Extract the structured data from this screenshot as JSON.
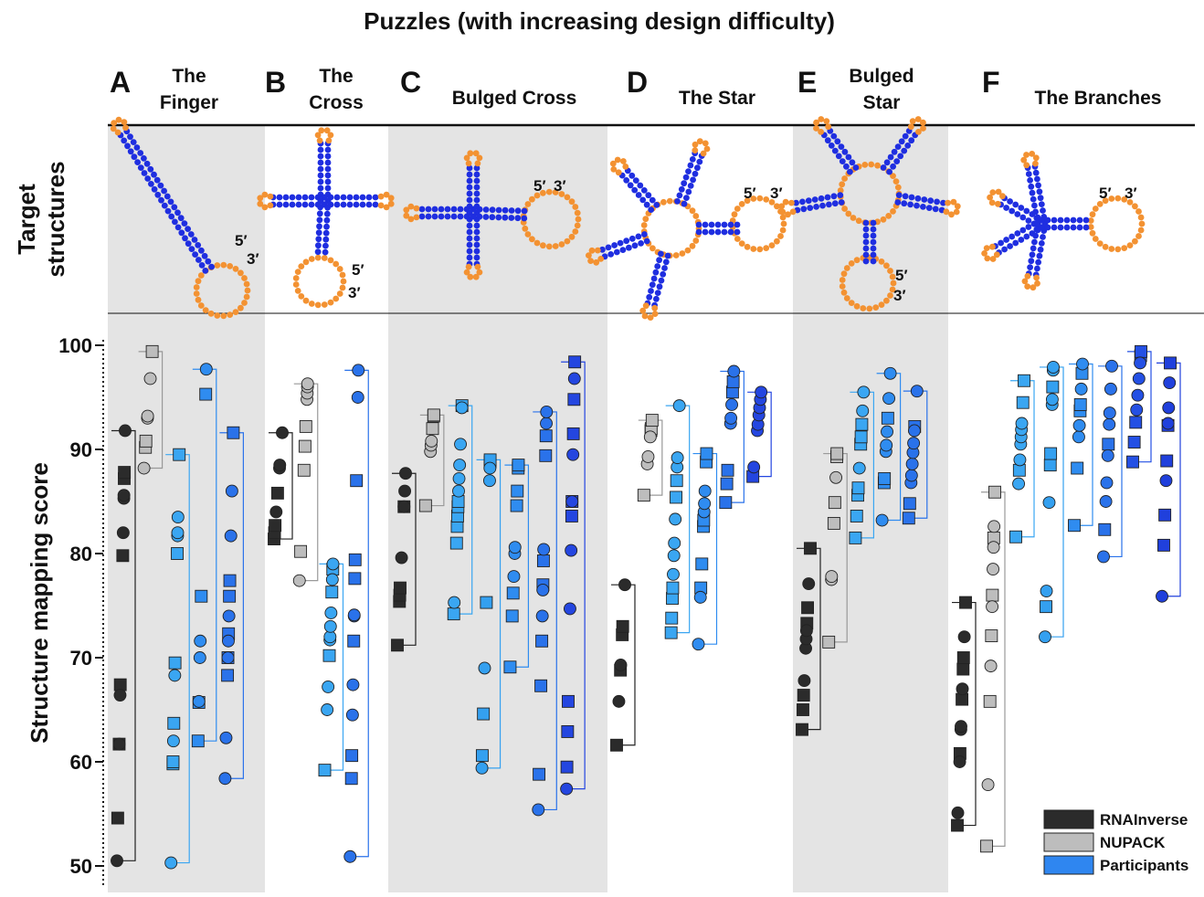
{
  "chart_data": {
    "type": "scatter",
    "title": "Puzzles (with increasing design difficulty)",
    "row_label": [
      "Target",
      "structures"
    ],
    "y_label": "Structure mapping score",
    "end_labels": [
      "5′",
      "3′"
    ],
    "ylim": [
      50,
      100
    ],
    "yticks": [
      50,
      60,
      70,
      80,
      90,
      100
    ],
    "series": [
      {
        "name": "RNAInverse",
        "color": "#2b2b2b"
      },
      {
        "name": "NUPACK",
        "color": "#bdbdbd"
      },
      {
        "name": "Participants",
        "color": "#2f86f0"
      }
    ],
    "panels": [
      {
        "letter": "A",
        "name": [
          "The",
          "Finger"
        ],
        "groups": [
          {
            "series": 0,
            "squares": [
              54.6,
              61.7,
              67.4,
              79.8,
              87.2,
              87.8
            ],
            "circles": [
              50.5,
              61.7,
              66.4,
              82,
              85.3,
              85.6,
              91.8
            ]
          },
          {
            "series": 1,
            "squares": [
              90.2,
              90.8,
              99.4
            ],
            "circles": [
              88.2,
              93,
              93.2,
              96.8
            ]
          },
          {
            "series": 2,
            "color": "#3aa6f2",
            "squares": [
              59.8,
              60,
              63.7,
              69.5,
              80,
              89.5
            ],
            "circles": [
              50.3,
              62,
              68.3,
              81.7,
              82,
              83.5
            ]
          },
          {
            "series": 2,
            "color": "#2f8cf0",
            "squares": [
              62,
              65.7,
              75.9,
              95.3
            ],
            "circles": [
              65.8,
              70,
              71.6,
              97.7
            ]
          },
          {
            "series": 2,
            "color": "#2a72ea",
            "squares": [
              68.3,
              70,
              72.3,
              75.9,
              77.4,
              91.6
            ],
            "circles": [
              58.4,
              62.3,
              70,
              71.6,
              74,
              81.7,
              86
            ]
          }
        ]
      },
      {
        "letter": "B",
        "name": [
          "The",
          "Cross"
        ],
        "groups": [
          {
            "series": 0,
            "squares": [
              81.4,
              82,
              82.7,
              85.8
            ],
            "circles": [
              84,
              88.2,
              88.5,
              91.6
            ]
          },
          {
            "series": 1,
            "squares": [
              80.2,
              88,
              90.3,
              92.2
            ],
            "circles": [
              77.4,
              94.8,
              95.4,
              96,
              96.3
            ]
          },
          {
            "series": 2,
            "color": "#3aa6f2",
            "squares": [
              59.2,
              70.2,
              76.3,
              78.5
            ],
            "circles": [
              65,
              67.2,
              71.7,
              72,
              73,
              74.3,
              77.5,
              79
            ]
          },
          {
            "series": 2,
            "color": "#2a72ea",
            "squares": [
              58.4,
              60.6,
              71.6,
              77.6,
              79.4,
              87
            ],
            "circles": [
              50.9,
              64.5,
              67.4,
              74,
              74.1,
              95,
              97.6
            ]
          }
        ]
      },
      {
        "letter": "C",
        "name": [
          "Bulged Cross"
        ],
        "groups": [
          {
            "series": 0,
            "squares": [
              71.2,
              75.4,
              76,
              76.7,
              84.5
            ],
            "circles": [
              79.6,
              84.5,
              86,
              87.7
            ]
          },
          {
            "series": 1,
            "squares": [
              84.6,
              92,
              93.2,
              93.3
            ],
            "circles": [
              89.8,
              90.4,
              90.8
            ]
          },
          {
            "series": 2,
            "color": "#3aa6f2",
            "squares": [
              74.2,
              81,
              82.6,
              83.6,
              84.5,
              85,
              94.2
            ],
            "circles": [
              75.3,
              86,
              87.2,
              88.5,
              90.5,
              94
            ]
          },
          {
            "series": 2,
            "color": "#34a0f0",
            "squares": [
              60.6,
              64.6,
              75.3,
              88.8,
              89
            ],
            "circles": [
              59.4,
              69,
              87,
              88.2
            ]
          },
          {
            "series": 2,
            "color": "#2f8cf0",
            "squares": [
              69.1,
              74,
              76.2,
              84.6,
              86,
              88.2,
              88.5
            ],
            "circles": [
              77.8,
              80,
              80.6
            ]
          },
          {
            "series": 2,
            "color": "#2a72ea",
            "squares": [
              58.8,
              67.3,
              71.6,
              77,
              79.3,
              89.4,
              91.3
            ],
            "circles": [
              55.4,
              74,
              76.5,
              80.4,
              92.5,
              93.6
            ]
          },
          {
            "series": 2,
            "color": "#2446e0",
            "squares": [
              59.5,
              62.9,
              65.8,
              83.6,
              85,
              91.5,
              94.8,
              98.4
            ],
            "circles": [
              57.4,
              74.7,
              80.3,
              85,
              89.5,
              96.8
            ]
          }
        ]
      },
      {
        "letter": "D",
        "name": [
          "The Star"
        ],
        "groups": [
          {
            "series": 0,
            "squares": [
              61.6,
              68.8,
              72.2,
              73
            ],
            "circles": [
              65.8,
              69.3,
              77
            ]
          },
          {
            "series": 1,
            "squares": [
              85.6,
              91.8,
              92,
              92.8
            ],
            "circles": [
              88.6,
              89.3,
              91.2
            ]
          },
          {
            "series": 2,
            "color": "#3aa6f2",
            "squares": [
              72.4,
              73.8,
              75.7,
              76.7,
              85.4,
              87
            ],
            "circles": [
              78,
              79.8,
              81,
              83.3,
              88.3,
              89.2,
              94.2
            ]
          },
          {
            "series": 2,
            "color": "#2f8cf0",
            "squares": [
              76.7,
              79,
              82.6,
              83.2,
              88.8,
              89.6
            ],
            "circles": [
              71.3,
              75.8,
              84,
              84.8,
              86
            ]
          },
          {
            "series": 2,
            "color": "#2a72ea",
            "squares": [
              84.9,
              86.7,
              88,
              95.5,
              96.5
            ],
            "circles": [
              92.5,
              93,
              94.3,
              97.5
            ]
          },
          {
            "series": 2,
            "color": "#2446e0",
            "squares": [
              87.4
            ],
            "circles": [
              88.3,
              91.8,
              92.4,
              93.3,
              94,
              94.8,
              95.5
            ]
          }
        ]
      },
      {
        "letter": "E",
        "name": [
          "Bulged",
          "Star"
        ],
        "groups": [
          {
            "series": 0,
            "squares": [
              63.1,
              65,
              66.4,
              73.3,
              74.8,
              80.5
            ],
            "circles": [
              67.8,
              70.9,
              71.8,
              72.6,
              77.1
            ]
          },
          {
            "series": 1,
            "squares": [
              71.5,
              82.9,
              84.9,
              89.3,
              89.6
            ],
            "circles": [
              77.5,
              77.8,
              87.3
            ]
          },
          {
            "series": 2,
            "color": "#3aa6f2",
            "squares": [
              81.5,
              83.6,
              85.6,
              86.3,
              90.5,
              91.2,
              92.4
            ],
            "circles": [
              88.2,
              93.7,
              95.5
            ]
          },
          {
            "series": 2,
            "color": "#2f8cf0",
            "squares": [
              86.8,
              87.2,
              93
            ],
            "circles": [
              83.2,
              89.8,
              90.4,
              91.7,
              94.9,
              97.3
            ]
          },
          {
            "series": 2,
            "color": "#2a72ea",
            "squares": [
              83.4,
              84.8,
              92.2
            ],
            "circles": [
              86.8,
              87.5,
              88.6,
              89.7,
              90.6,
              91.8,
              95.6
            ]
          }
        ]
      },
      {
        "letter": "F",
        "name": [
          "The Branches"
        ],
        "groups": [
          {
            "series": 0,
            "squares": [
              53.9,
              60.8,
              66,
              68.9,
              70,
              75.3
            ],
            "circles": [
              55.1,
              60,
              63.1,
              63.4,
              67,
              72
            ]
          },
          {
            "series": 1,
            "squares": [
              51.9,
              65.8,
              72.1,
              76,
              81.5,
              85.9
            ],
            "circles": [
              57.8,
              69.2,
              74.9,
              78.5,
              80.6,
              82.6
            ]
          },
          {
            "series": 2,
            "color": "#3aa6f2",
            "squares": [
              81.6,
              88,
              94.5,
              96.6
            ],
            "circles": [
              86.7,
              89,
              90.5,
              91.2,
              91.9,
              92.5
            ]
          },
          {
            "series": 2,
            "color": "#34a0f0",
            "squares": [
              74.9,
              88.5,
              89.6,
              96
            ],
            "circles": [
              72,
              76.4,
              84.9,
              94.3,
              94.8,
              97.6,
              97.9
            ]
          },
          {
            "series": 2,
            "color": "#2f8cf0",
            "squares": [
              82.7,
              88.2,
              93.7,
              94.3,
              97.3
            ],
            "circles": [
              91.2,
              92.3,
              95.8,
              98.2
            ]
          },
          {
            "series": 2,
            "color": "#2a72ea",
            "squares": [
              82.3,
              90.5
            ],
            "circles": [
              79.7,
              85,
              86.8,
              89.4,
              92.4,
              93.5,
              95.8,
              98
            ]
          },
          {
            "series": 2,
            "color": "#2450e4",
            "squares": [
              88.8,
              90.7,
              92.6,
              99,
              99.4
            ],
            "circles": [
              93.8,
              95.2,
              96.8,
              98.3
            ]
          },
          {
            "series": 2,
            "color": "#2040dc",
            "squares": [
              80.8,
              83.7,
              88.9,
              92.3,
              98.3
            ],
            "circles": [
              75.9,
              87,
              92.5,
              94,
              96.4
            ]
          }
        ]
      }
    ]
  }
}
